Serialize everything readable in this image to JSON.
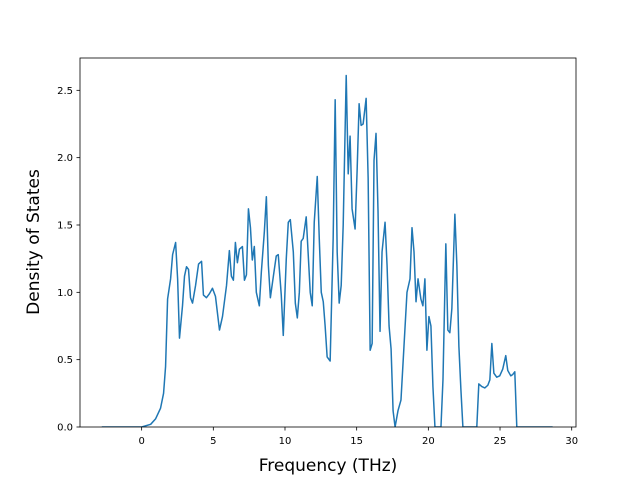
{
  "chart_data": {
    "type": "line",
    "xlabel": "Frequency (THz)",
    "ylabel": "Density of States",
    "color": "#1f77b4",
    "x": [
      -2.78,
      0,
      0.63,
      0.97,
      1.32,
      1.53,
      1.67,
      1.81,
      2.02,
      2.16,
      2.37,
      2.51,
      2.64,
      2.85,
      2.99,
      3.13,
      3.27,
      3.41,
      3.55,
      3.76,
      3.97,
      4.18,
      4.31,
      4.52,
      4.73,
      4.94,
      5.15,
      5.43,
      5.64,
      5.92,
      6.12,
      6.26,
      6.4,
      6.54,
      6.68,
      6.82,
      7.03,
      7.17,
      7.31,
      7.45,
      7.59,
      7.72,
      7.86,
      8.0,
      8.21,
      8.35,
      8.56,
      8.7,
      8.84,
      8.98,
      9.19,
      9.39,
      9.53,
      9.74,
      9.88,
      10.09,
      10.23,
      10.37,
      10.58,
      10.72,
      10.86,
      11.0,
      11.13,
      11.27,
      11.48,
      11.62,
      11.76,
      11.9,
      12.04,
      12.25,
      12.39,
      12.53,
      12.67,
      12.8,
      12.94,
      13.15,
      13.36,
      13.5,
      13.64,
      13.78,
      13.92,
      14.06,
      14.27,
      14.41,
      14.54,
      14.68,
      14.89,
      15.03,
      15.17,
      15.31,
      15.45,
      15.66,
      15.8,
      15.94,
      16.08,
      16.21,
      16.35,
      16.49,
      16.63,
      16.77,
      16.98,
      17.12,
      17.26,
      17.4,
      17.54,
      17.68,
      17.88,
      18.09,
      18.3,
      18.51,
      18.72,
      18.86,
      19.0,
      19.14,
      19.28,
      19.48,
      19.62,
      19.76,
      19.9,
      20.04,
      20.18,
      20.32,
      20.46,
      20.88,
      21.02,
      21.22,
      21.36,
      21.5,
      21.64,
      21.85,
      21.99,
      22.13,
      22.27,
      22.41,
      23.38,
      23.52,
      23.73,
      23.94,
      24.15,
      24.29,
      24.43,
      24.57,
      24.77,
      24.98,
      25.19,
      25.4,
      25.54,
      25.75,
      25.89,
      26.03,
      26.17,
      28.67
    ],
    "values": [
      0,
      0,
      0.02,
      0.06,
      0.14,
      0.25,
      0.45,
      0.95,
      1.1,
      1.28,
      1.37,
      1.1,
      0.66,
      0.9,
      1.12,
      1.19,
      1.17,
      0.96,
      0.92,
      1.05,
      1.21,
      1.23,
      0.98,
      0.96,
      0.99,
      1.03,
      0.97,
      0.72,
      0.82,
      1.05,
      1.31,
      1.12,
      1.09,
      1.37,
      1.22,
      1.32,
      1.34,
      1.09,
      1.13,
      1.62,
      1.48,
      1.24,
      1.34,
      1.0,
      0.9,
      1.15,
      1.45,
      1.71,
      1.2,
      0.96,
      1.12,
      1.27,
      1.28,
      0.98,
      0.68,
      1.25,
      1.52,
      1.54,
      1.3,
      0.92,
      0.81,
      1.0,
      1.38,
      1.4,
      1.56,
      1.28,
      1.0,
      0.9,
      1.52,
      1.86,
      1.4,
      1.0,
      0.93,
      0.75,
      0.52,
      0.49,
      1.4,
      2.43,
      1.3,
      0.92,
      1.05,
      1.5,
      2.61,
      1.88,
      2.16,
      1.62,
      1.47,
      1.9,
      2.4,
      2.24,
      2.25,
      2.44,
      1.85,
      0.57,
      0.62,
      1.98,
      2.18,
      1.6,
      0.71,
      1.3,
      1.52,
      1.2,
      0.75,
      0.58,
      0.12,
      0.0,
      0.12,
      0.2,
      0.6,
      1.0,
      1.1,
      1.48,
      1.3,
      0.93,
      1.1,
      0.95,
      0.9,
      1.1,
      0.57,
      0.82,
      0.75,
      0.3,
      0.0,
      0.0,
      0.35,
      1.36,
      0.72,
      0.7,
      0.88,
      1.58,
      1.2,
      0.6,
      0.28,
      0.0,
      0.0,
      0.32,
      0.3,
      0.29,
      0.31,
      0.35,
      0.62,
      0.4,
      0.37,
      0.38,
      0.43,
      0.53,
      0.42,
      0.38,
      0.39,
      0.41,
      0.0,
      0.0
    ],
    "xlim": [
      -4.3,
      30.3
    ],
    "xticks": [
      0,
      5,
      10,
      15,
      20,
      25,
      30
    ],
    "ylim": [
      0,
      2.74
    ],
    "yticks": [
      {
        "value": 0,
        "label": "0.0"
      },
      0.5,
      {
        "value": 1,
        "label": "1.0"
      },
      1.5,
      {
        "value": 2,
        "label": "2.0"
      },
      2.5
    ]
  }
}
